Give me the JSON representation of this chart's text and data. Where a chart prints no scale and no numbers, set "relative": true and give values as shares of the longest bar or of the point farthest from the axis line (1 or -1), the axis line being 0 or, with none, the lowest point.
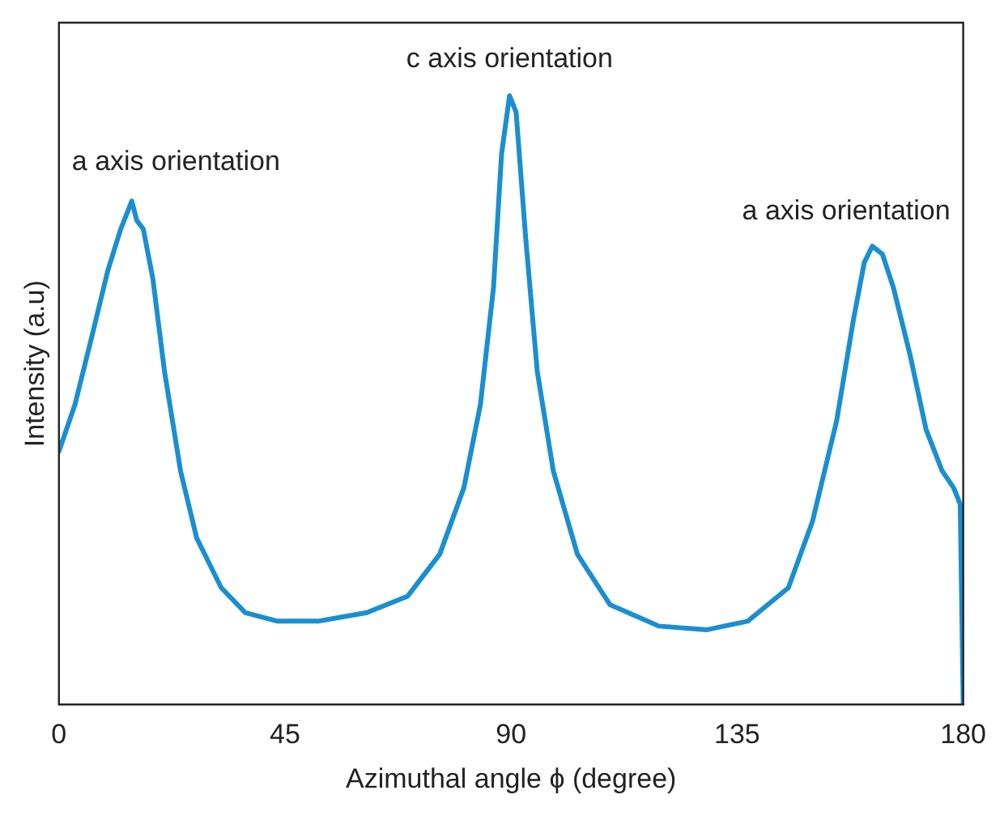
{
  "chart_data": {
    "type": "line",
    "relative": true,
    "xlabel": "Azimuthal angle ϕ (degree)",
    "ylabel": "Intensity (a.u)",
    "xlim": [
      0,
      180
    ],
    "xticks": [
      0,
      45,
      90,
      135,
      180
    ],
    "grid": false,
    "legend": false,
    "marker": "none",
    "line_style": "solid",
    "annotations": [
      {
        "text": "a axis orientation",
        "x": 14.5,
        "y": 0.83
      },
      {
        "text": "c axis orientation",
        "x": 89.7,
        "y": 1.0
      },
      {
        "text": "a axis orientation",
        "x": 161.9,
        "y": 0.75
      }
    ],
    "series": [
      {
        "color": "#1a8fd0",
        "x": [
          0,
          3.2,
          6.5,
          9.7,
          12.3,
          14.5,
          15.5,
          16.8,
          18.7,
          21,
          24.2,
          27.4,
          32.3,
          37.1,
          43.5,
          51.6,
          61.3,
          69.4,
          75.8,
          80.6,
          83.9,
          86.5,
          88.1,
          89.7,
          91,
          92.9,
          95.2,
          98.4,
          103.2,
          109.7,
          119.4,
          129,
          137.1,
          145.2,
          150,
          154.8,
          158.1,
          160.3,
          161.9,
          163.9,
          166.1,
          169.4,
          172.6,
          175.8,
          178.1,
          179.4,
          180
        ],
        "values": [
          0.416,
          0.493,
          0.603,
          0.712,
          0.781,
          0.827,
          0.795,
          0.781,
          0.699,
          0.548,
          0.384,
          0.274,
          0.192,
          0.151,
          0.137,
          0.137,
          0.151,
          0.178,
          0.247,
          0.356,
          0.493,
          0.685,
          0.904,
          1.0,
          0.973,
          0.767,
          0.548,
          0.384,
          0.247,
          0.164,
          0.129,
          0.123,
          0.137,
          0.192,
          0.301,
          0.466,
          0.63,
          0.726,
          0.753,
          0.74,
          0.685,
          0.575,
          0.452,
          0.384,
          0.356,
          0.329,
          0
        ]
      }
    ]
  }
}
